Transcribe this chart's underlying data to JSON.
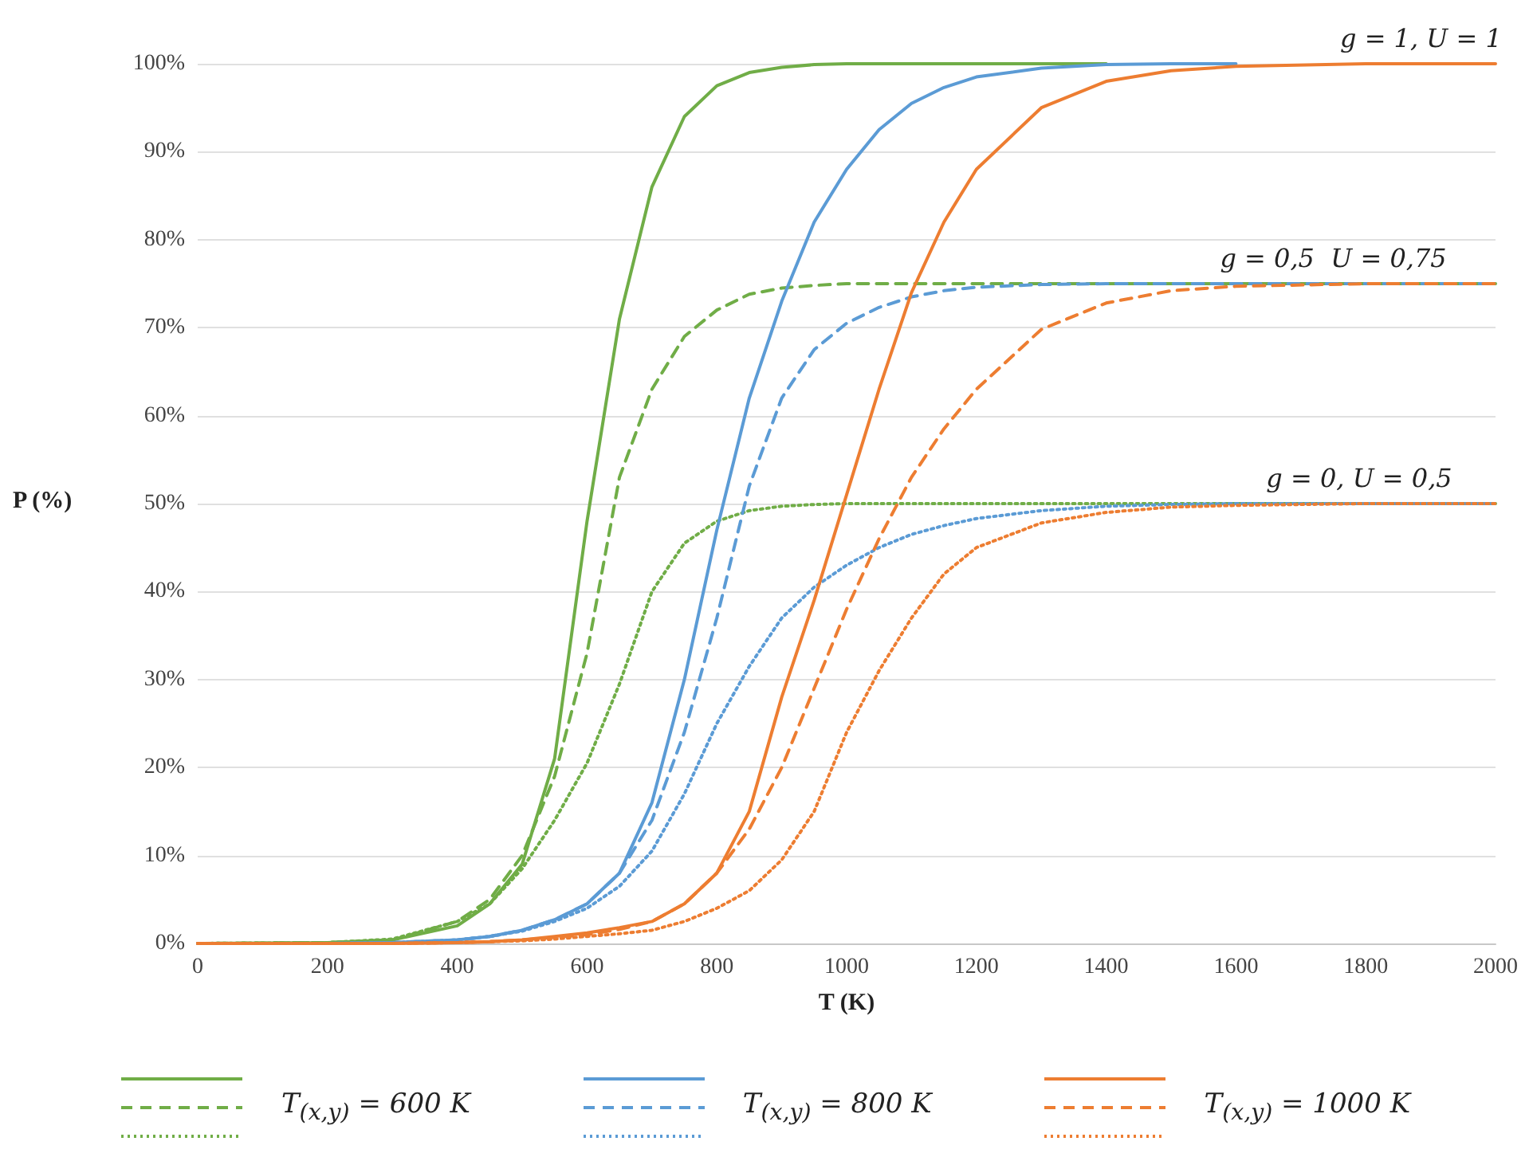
{
  "chart_data": {
    "type": "line",
    "xlabel": "T (K)",
    "ylabel": "P (%)",
    "x": [
      0,
      200,
      300,
      400,
      450,
      500,
      550,
      600,
      650,
      700,
      750,
      800,
      850,
      900,
      950,
      1000,
      1050,
      1100,
      1150,
      1200,
      1300,
      1400,
      1500,
      1600,
      1800,
      2000
    ],
    "series": [
      {
        "color": "#70ad47",
        "line_style": "solid",
        "values": [
          0,
          0.1,
          0.4,
          2,
          4.5,
          9,
          21,
          48,
          71,
          86,
          94,
          97.5,
          99,
          99.6,
          99.9,
          100,
          100,
          100,
          100,
          100,
          100,
          100,
          null,
          null,
          null,
          null
        ]
      },
      {
        "name": "T$_{(x,y)}$ = 600 K",
        "color": "#70ad47",
        "line_style": "dashed",
        "values": [
          0,
          0.1,
          0.4,
          2.5,
          5,
          10,
          19,
          33,
          53,
          63,
          69,
          72,
          73.8,
          74.5,
          74.8,
          75,
          75,
          75,
          75,
          75,
          75,
          75,
          75,
          75,
          75,
          75
        ]
      },
      {
        "color": "#70ad47",
        "line_style": "dotted",
        "values": [
          0,
          0.1,
          0.5,
          2.5,
          4.5,
          8.5,
          14,
          20.5,
          29.5,
          40,
          45.5,
          48,
          49.2,
          49.7,
          49.9,
          50,
          50,
          50,
          50,
          50,
          50,
          50,
          50,
          50,
          50,
          50
        ]
      },
      {
        "color": "#5b9bd5",
        "line_style": "solid",
        "values": [
          0,
          0,
          0.1,
          0.4,
          0.8,
          1.5,
          2.7,
          4.5,
          8,
          16,
          30,
          47,
          62,
          73,
          82,
          88,
          92.5,
          95.5,
          97.3,
          98.5,
          99.5,
          99.9,
          100,
          100,
          null,
          null
        ]
      },
      {
        "name": "T$_{(x,y)}$ = 800 K",
        "color": "#5b9bd5",
        "line_style": "dashed",
        "values": [
          0,
          0,
          0.1,
          0.4,
          0.8,
          1.5,
          2.7,
          4.5,
          8,
          14,
          24,
          37,
          52,
          62,
          67.5,
          70.5,
          72.3,
          73.5,
          74.2,
          74.6,
          74.9,
          75,
          75,
          75,
          75,
          75
        ]
      },
      {
        "color": "#5b9bd5",
        "line_style": "dotted",
        "values": [
          0,
          0,
          0.1,
          0.4,
          0.8,
          1.4,
          2.5,
          4,
          6.5,
          10.5,
          17,
          25,
          31.5,
          37,
          40.5,
          43,
          45,
          46.5,
          47.5,
          48.3,
          49.2,
          49.7,
          49.9,
          50,
          50,
          50
        ]
      },
      {
        "color": "#ed7d31",
        "line_style": "solid",
        "values": [
          0,
          0,
          0,
          0.1,
          0.2,
          0.4,
          0.8,
          1.2,
          1.8,
          2.5,
          4.5,
          8,
          15,
          28,
          39,
          51,
          63,
          74,
          82,
          88,
          95,
          98,
          99.2,
          99.7,
          100,
          100
        ]
      },
      {
        "name": "T$_{(x,y)}$ = 1000 K",
        "color": "#ed7d31",
        "line_style": "dashed",
        "values": [
          0,
          0,
          0,
          0.1,
          0.2,
          0.4,
          0.7,
          1,
          1.6,
          2.5,
          4.5,
          8,
          13,
          20,
          29,
          38,
          46,
          53,
          58.5,
          63,
          69.8,
          72.8,
          74.2,
          74.7,
          75,
          75
        ]
      },
      {
        "color": "#ed7d31",
        "line_style": "dotted",
        "values": [
          0,
          0,
          0,
          0.1,
          0.2,
          0.3,
          0.5,
          0.8,
          1.1,
          1.5,
          2.5,
          4,
          6,
          9.5,
          15,
          24,
          31,
          37,
          42,
          45,
          47.8,
          49,
          49.6,
          49.8,
          50,
          50
        ]
      }
    ],
    "xlim": [
      0,
      2000
    ],
    "xticks": [
      0,
      200,
      400,
      600,
      800,
      1000,
      1200,
      1400,
      1600,
      1800,
      2000
    ],
    "ylim": [
      0,
      100
    ],
    "yticks": [
      {
        "value": 0,
        "label": "0%"
      },
      {
        "value": 10,
        "label": "10%"
      },
      {
        "value": 20,
        "label": "20%"
      },
      {
        "value": 30,
        "label": "30%"
      },
      {
        "value": 40,
        "label": "40%"
      },
      {
        "value": 50,
        "label": "50%"
      },
      {
        "value": 60,
        "label": "60%"
      },
      {
        "value": 70,
        "label": "70%"
      },
      {
        "value": 80,
        "label": "80%"
      },
      {
        "value": 90,
        "label": "90%"
      },
      {
        "value": 100,
        "label": "100%"
      }
    ],
    "annotations": [
      {
        "text": "g = 1, U = 1",
        "x": 1885,
        "y": 100
      },
      {
        "text": "g = 0,5  U = 0,75",
        "x": 1750,
        "y": 75
      },
      {
        "text": "g = 0, U = 0,5",
        "x": 1790,
        "y": 50
      }
    ],
    "grid": "y",
    "legend": "bottom",
    "marker": "none"
  }
}
